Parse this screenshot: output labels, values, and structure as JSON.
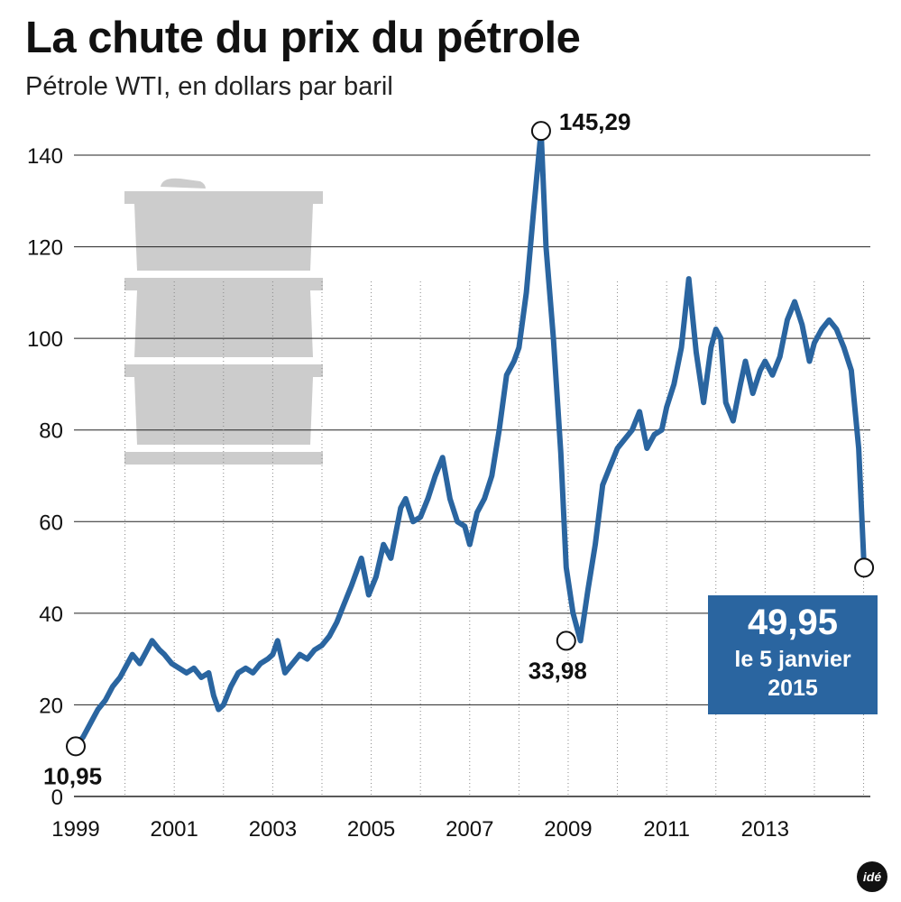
{
  "chart_data": {
    "type": "line",
    "title": "La chute du prix du pétrole",
    "subtitle": "Pétrole WTI, en dollars par baril",
    "xlabel": "",
    "ylabel": "",
    "ylim": [
      0,
      140
    ],
    "xlim": [
      1999.0,
      2015.1
    ],
    "grid": true,
    "yticks": [
      "0",
      "20",
      "40",
      "60",
      "80",
      "100",
      "120",
      "140"
    ],
    "xticks": [
      "1999",
      "2001",
      "2003",
      "2005",
      "2007",
      "2009",
      "2011",
      "2013"
    ],
    "series": [
      {
        "color": "#2a65a0",
        "x": [
          1999.0,
          1999.15,
          1999.3,
          1999.45,
          1999.6,
          1999.75,
          1999.9,
          2000.0,
          2000.15,
          2000.3,
          2000.45,
          2000.55,
          2000.7,
          2000.8,
          2000.95,
          2001.1,
          2001.25,
          2001.4,
          2001.55,
          2001.7,
          2001.8,
          2001.9,
          2002.0,
          2002.15,
          2002.3,
          2002.45,
          2002.6,
          2002.75,
          2002.9,
          2003.0,
          2003.1,
          2003.25,
          2003.4,
          2003.55,
          2003.7,
          2003.85,
          2004.0,
          2004.15,
          2004.3,
          2004.45,
          2004.6,
          2004.8,
          2004.95,
          2005.1,
          2005.25,
          2005.4,
          2005.6,
          2005.7,
          2005.85,
          2006.0,
          2006.15,
          2006.3,
          2006.45,
          2006.6,
          2006.75,
          2006.9,
          2007.0,
          2007.15,
          2007.3,
          2007.45,
          2007.6,
          2007.75,
          2007.9,
          2008.0,
          2008.15,
          2008.3,
          2008.45,
          2008.55,
          2008.7,
          2008.85,
          2008.96,
          2009.1,
          2009.25,
          2009.4,
          2009.55,
          2009.7,
          2009.85,
          2010.0,
          2010.15,
          2010.3,
          2010.45,
          2010.6,
          2010.75,
          2010.9,
          2011.0,
          2011.15,
          2011.3,
          2011.45,
          2011.6,
          2011.75,
          2011.9,
          2012.0,
          2012.1,
          2012.2,
          2012.35,
          2012.5,
          2012.6,
          2012.75,
          2012.9,
          2013.0,
          2013.15,
          2013.3,
          2013.45,
          2013.6,
          2013.75,
          2013.9,
          2014.0,
          2014.15,
          2014.3,
          2014.45,
          2014.6,
          2014.75,
          2014.9,
          2015.01
        ],
        "y": [
          10.95,
          13,
          16,
          19,
          21,
          24,
          26,
          28,
          31,
          29,
          32,
          34,
          32,
          31,
          29,
          28,
          27,
          28,
          26,
          27,
          22,
          19,
          20,
          24,
          27,
          28,
          27,
          29,
          30,
          31,
          34,
          27,
          29,
          31,
          30,
          32,
          33,
          35,
          38,
          42,
          46,
          52,
          44,
          48,
          55,
          52,
          63,
          65,
          60,
          61,
          65,
          70,
          74,
          65,
          60,
          59,
          55,
          62,
          65,
          70,
          80,
          92,
          95,
          98,
          110,
          128,
          145.29,
          120,
          100,
          75,
          50,
          40,
          33.98,
          45,
          55,
          68,
          72,
          76,
          78,
          80,
          84,
          76,
          79,
          80,
          85,
          90,
          98,
          113,
          97,
          86,
          98,
          102,
          100,
          86,
          82,
          90,
          95,
          88,
          93,
          95,
          92,
          96,
          104,
          108,
          103,
          95,
          99,
          102,
          104,
          102,
          98,
          93,
          76,
          49.95
        ]
      }
    ],
    "annotations": [
      {
        "label": "10,95",
        "x": 1999.0,
        "y": 10.95
      },
      {
        "label": "145,29",
        "x": 2008.45,
        "y": 145.29
      },
      {
        "label": "33,98",
        "x": 2008.96,
        "y": 33.98
      },
      {
        "label": "49,95",
        "x": 2015.01,
        "y": 49.95
      }
    ],
    "final_value": "49,95",
    "final_date_line1": "le 5 janvier",
    "final_date_line2": "2015"
  },
  "logo_text": "idé",
  "colors": {
    "line": "#2a65a0",
    "box": "#2a65a0",
    "barrel": "#cccccc",
    "grid": "#222222"
  },
  "icons": [
    "oil-barrel-icon",
    "ide-logo-icon"
  ]
}
